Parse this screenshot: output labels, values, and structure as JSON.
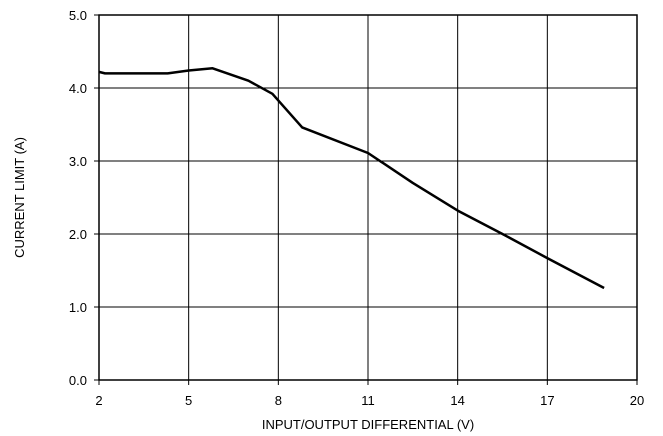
{
  "chart_data": {
    "type": "line",
    "xlabel": "INPUT/OUTPUT DIFFERENTIAL (V)",
    "ylabel": "CURRENT LIMIT (A)",
    "xlim": [
      2,
      20
    ],
    "ylim": [
      0,
      5
    ],
    "x_ticks": [
      2,
      5,
      8,
      11,
      14,
      17,
      20
    ],
    "x_tick_labels": [
      "2",
      "5",
      "8",
      "11",
      "14",
      "17",
      "20"
    ],
    "y_ticks": [
      0,
      1,
      2,
      3,
      4,
      5
    ],
    "y_tick_labels": [
      "0.0",
      "1.0",
      "2.0",
      "3.0",
      "4.0",
      "5.0"
    ],
    "grid": true,
    "series": [
      {
        "x": [
          2.0,
          2.2,
          3.0,
          4.3,
          5.0,
          5.8,
          7.0,
          7.8,
          8.8,
          11.0,
          12.5,
          14.0,
          15.5,
          17.0,
          18.9
        ],
        "y": [
          4.22,
          4.2,
          4.2,
          4.2,
          4.24,
          4.27,
          4.1,
          3.92,
          3.46,
          3.11,
          2.7,
          2.32,
          2.0,
          1.67,
          1.26
        ]
      }
    ]
  }
}
